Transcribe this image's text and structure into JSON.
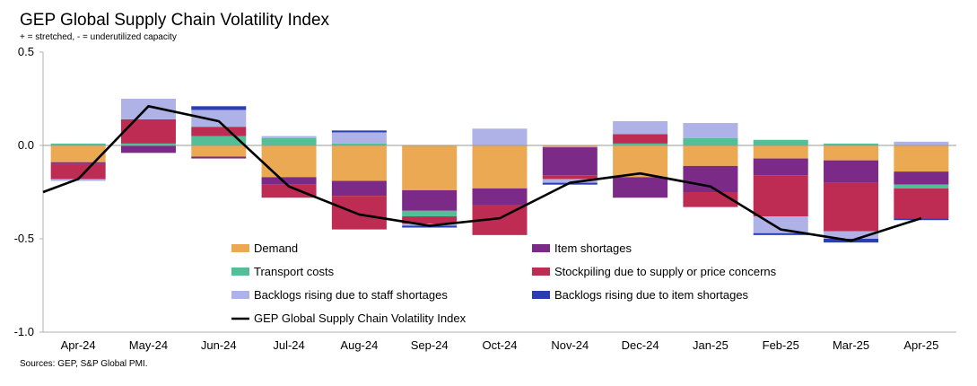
{
  "chart_data": {
    "type": "bar",
    "stacked": true,
    "title": "GEP Global Supply Chain Volatility Index",
    "subtitle": "+ = stretched, - = underutilized capacity",
    "source": "Sources: GEP, S&P Global PMI.",
    "categories": [
      "Apr-24",
      "May-24",
      "Jun-24",
      "Jul-24",
      "Aug-24",
      "Sep-24",
      "Oct-24",
      "Nov-24",
      "Dec-24",
      "Jan-25",
      "Feb-25",
      "Mar-25",
      "Apr-25"
    ],
    "ylim": [
      -1.0,
      0.5
    ],
    "yticks": [
      0.5,
      0.0,
      -0.5,
      -1.0
    ],
    "ytick_labels": [
      "0.5",
      "0.0",
      "-0.5",
      "-1.0"
    ],
    "series": [
      {
        "name": "Demand",
        "color": "#EBA954",
        "values": [
          -0.09,
          0.0,
          -0.06,
          -0.17,
          -0.19,
          -0.24,
          -0.23,
          -0.01,
          -0.17,
          -0.11,
          -0.07,
          -0.08,
          -0.14
        ]
      },
      {
        "name": "Item shortages",
        "color": "#7B2A87",
        "values": [
          -0.01,
          -0.04,
          -0.01,
          -0.04,
          -0.08,
          -0.11,
          -0.09,
          -0.15,
          -0.11,
          -0.14,
          -0.09,
          -0.12,
          -0.07
        ]
      },
      {
        "name": "Transport costs",
        "color": "#54BF96",
        "values": [
          0.01,
          0.01,
          0.05,
          0.04,
          0.01,
          -0.03,
          0.0,
          0.0,
          0.01,
          0.04,
          0.03,
          0.01,
          -0.02
        ]
      },
      {
        "name": "Stockpiling due to supply or price concerns",
        "color": "#BF2C53",
        "values": [
          -0.08,
          0.13,
          0.05,
          -0.07,
          -0.18,
          -0.04,
          -0.16,
          -0.02,
          0.05,
          -0.08,
          -0.22,
          -0.26,
          -0.16
        ]
      },
      {
        "name": "Backlogs rising due to staff shortages",
        "color": "#AEB2E6",
        "values": [
          -0.01,
          0.11,
          0.09,
          0.01,
          0.06,
          -0.01,
          0.09,
          -0.02,
          0.07,
          0.08,
          -0.09,
          -0.04,
          0.02
        ]
      },
      {
        "name": "Backlogs rising due to item shortages",
        "color": "#2A3DB3",
        "values": [
          0.0,
          0.0,
          0.02,
          0.0,
          0.01,
          -0.01,
          0.0,
          -0.01,
          0.0,
          0.0,
          -0.01,
          -0.02,
          -0.01
        ]
      }
    ],
    "line": {
      "name": "GEP Global Supply Chain Volatility Index",
      "color": "#000000",
      "values": [
        -0.18,
        0.21,
        0.13,
        -0.22,
        -0.37,
        -0.43,
        -0.39,
        -0.2,
        -0.15,
        -0.22,
        -0.45,
        -0.51,
        -0.39
      ]
    },
    "line_start_value": -0.25,
    "grid": false,
    "legend_position": "bottom-center"
  }
}
